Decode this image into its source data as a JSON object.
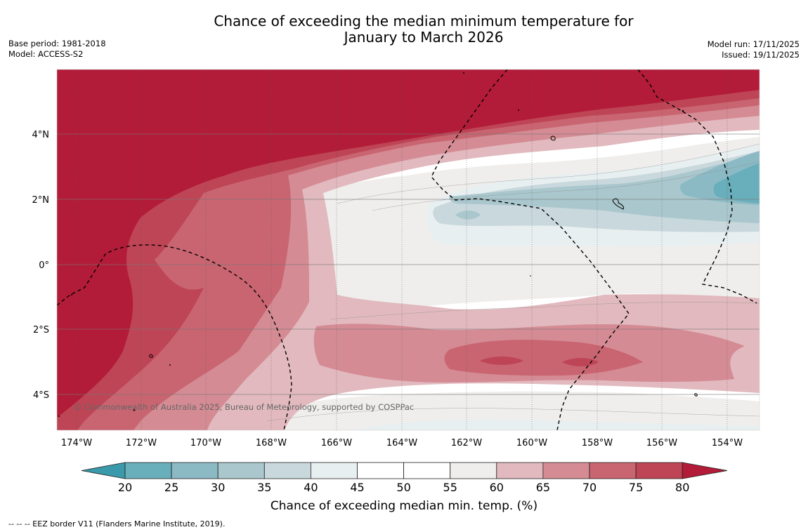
{
  "header": {
    "title_line1": "Chance of exceeding the median minimum temperature for",
    "title_line2": "January to March 2026",
    "base_period": "Base period: 1981-2018",
    "model": "Model: ACCESS-S2",
    "model_run": "Model run: 17/11/2025",
    "issued": "Issued: 19/11/2025"
  },
  "map": {
    "lat_labels": [
      "4°N",
      "2°N",
      "0°",
      "2°S",
      "4°S"
    ],
    "lon_labels": [
      "174°W",
      "172°W",
      "170°W",
      "168°W",
      "166°W",
      "164°W",
      "162°W",
      "160°W",
      "158°W",
      "156°W",
      "154°W"
    ],
    "copyright": "© Commonwealth of Australia 2025, Bureau of Meteorology, supported by COSPPac"
  },
  "colorbar": {
    "ticks": [
      "20",
      "25",
      "30",
      "35",
      "40",
      "45",
      "50",
      "55",
      "60",
      "65",
      "70",
      "75",
      "80"
    ],
    "label": "Chance of exceeding median min. temp. (%)",
    "colors": [
      "#3a9aab",
      "#69aebb",
      "#8bb9c4",
      "#a9c7cd",
      "#c9d8dc",
      "#e8eff1",
      "#ffffff",
      "#ffffff",
      "#efeeec",
      "#e1b9be",
      "#d48b94",
      "#c96571",
      "#be4555",
      "#b21c38"
    ]
  },
  "footer": {
    "eez_note": "--  --  -- EEZ border V11 (Flanders Marine Institute, 2019)."
  }
}
